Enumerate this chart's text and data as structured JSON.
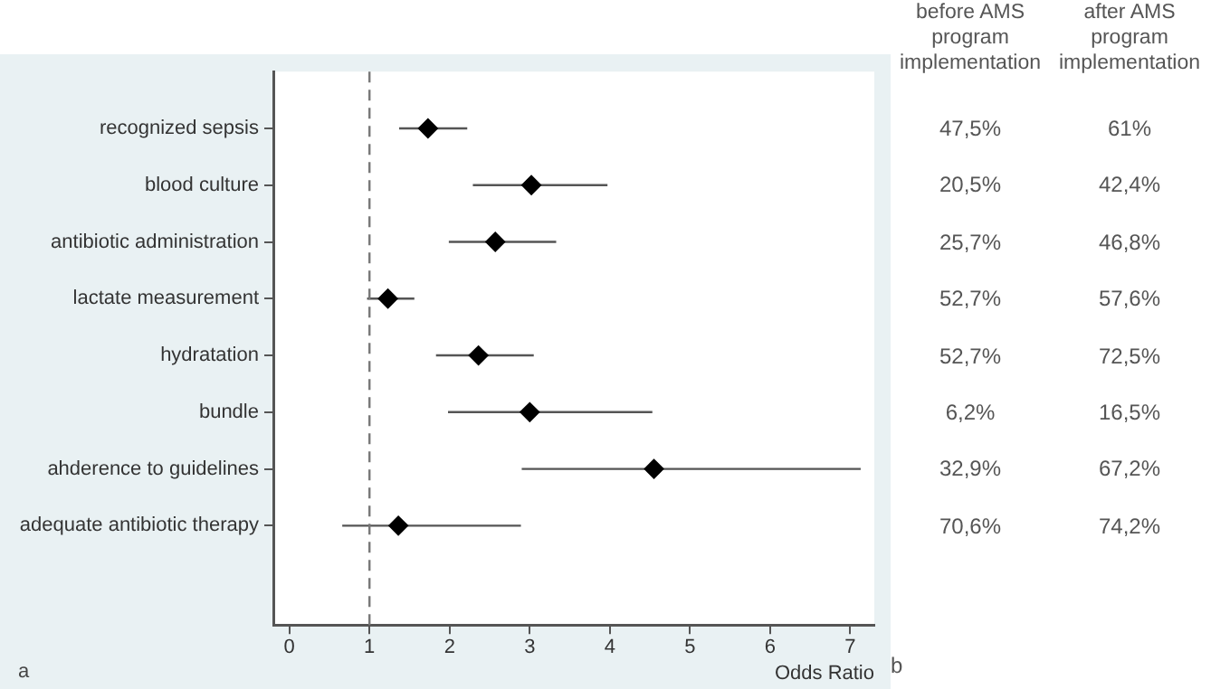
{
  "chart_data": [
    {
      "type": "scatter",
      "orientation": "horizontal",
      "categories": [
        "recognized sepsis",
        "blood culture",
        "antibiotic administration",
        "lactate measurement",
        "hydratation",
        "bundle",
        "ahderence to guidelines",
        "adequate antibiotic therapy"
      ],
      "series": [
        {
          "color": "#000000",
          "values": [
            1.73,
            3.02,
            2.57,
            1.23,
            2.36,
            3.0,
            4.55,
            1.36
          ],
          "errors": [
            [
              1.37,
              2.22
            ],
            [
              2.29,
              3.97
            ],
            [
              1.99,
              3.33
            ],
            [
              0.97,
              1.56
            ],
            [
              1.83,
              3.05
            ],
            [
              1.98,
              4.53
            ],
            [
              2.9,
              7.13
            ],
            [
              0.66,
              2.89
            ]
          ]
        }
      ],
      "xlim": [
        -0.2,
        7.3
      ],
      "xticks": [
        0,
        1,
        2,
        3,
        4,
        5,
        6,
        7
      ],
      "xlabel": "Odds Ratio",
      "marker": "diamond",
      "ref_lines": [
        {
          "axis": "x",
          "value": 1,
          "line_style": "dashed",
          "color": "#777777"
        }
      ],
      "annotations": [
        "a"
      ]
    },
    {
      "type": "other",
      "categories": [
        "before AMS program implementation",
        "after AMS program implementation"
      ],
      "annotations": [
        "47,5%",
        "61%",
        "20,5%",
        "42,4%",
        "25,7%",
        "46,8%",
        "52,7%",
        "57,6%",
        "52,7%",
        "72,5%",
        "6,2%",
        "16,5%",
        "32,9%",
        "67,2%",
        "70,6%",
        "74,2%",
        "b"
      ]
    }
  ]
}
